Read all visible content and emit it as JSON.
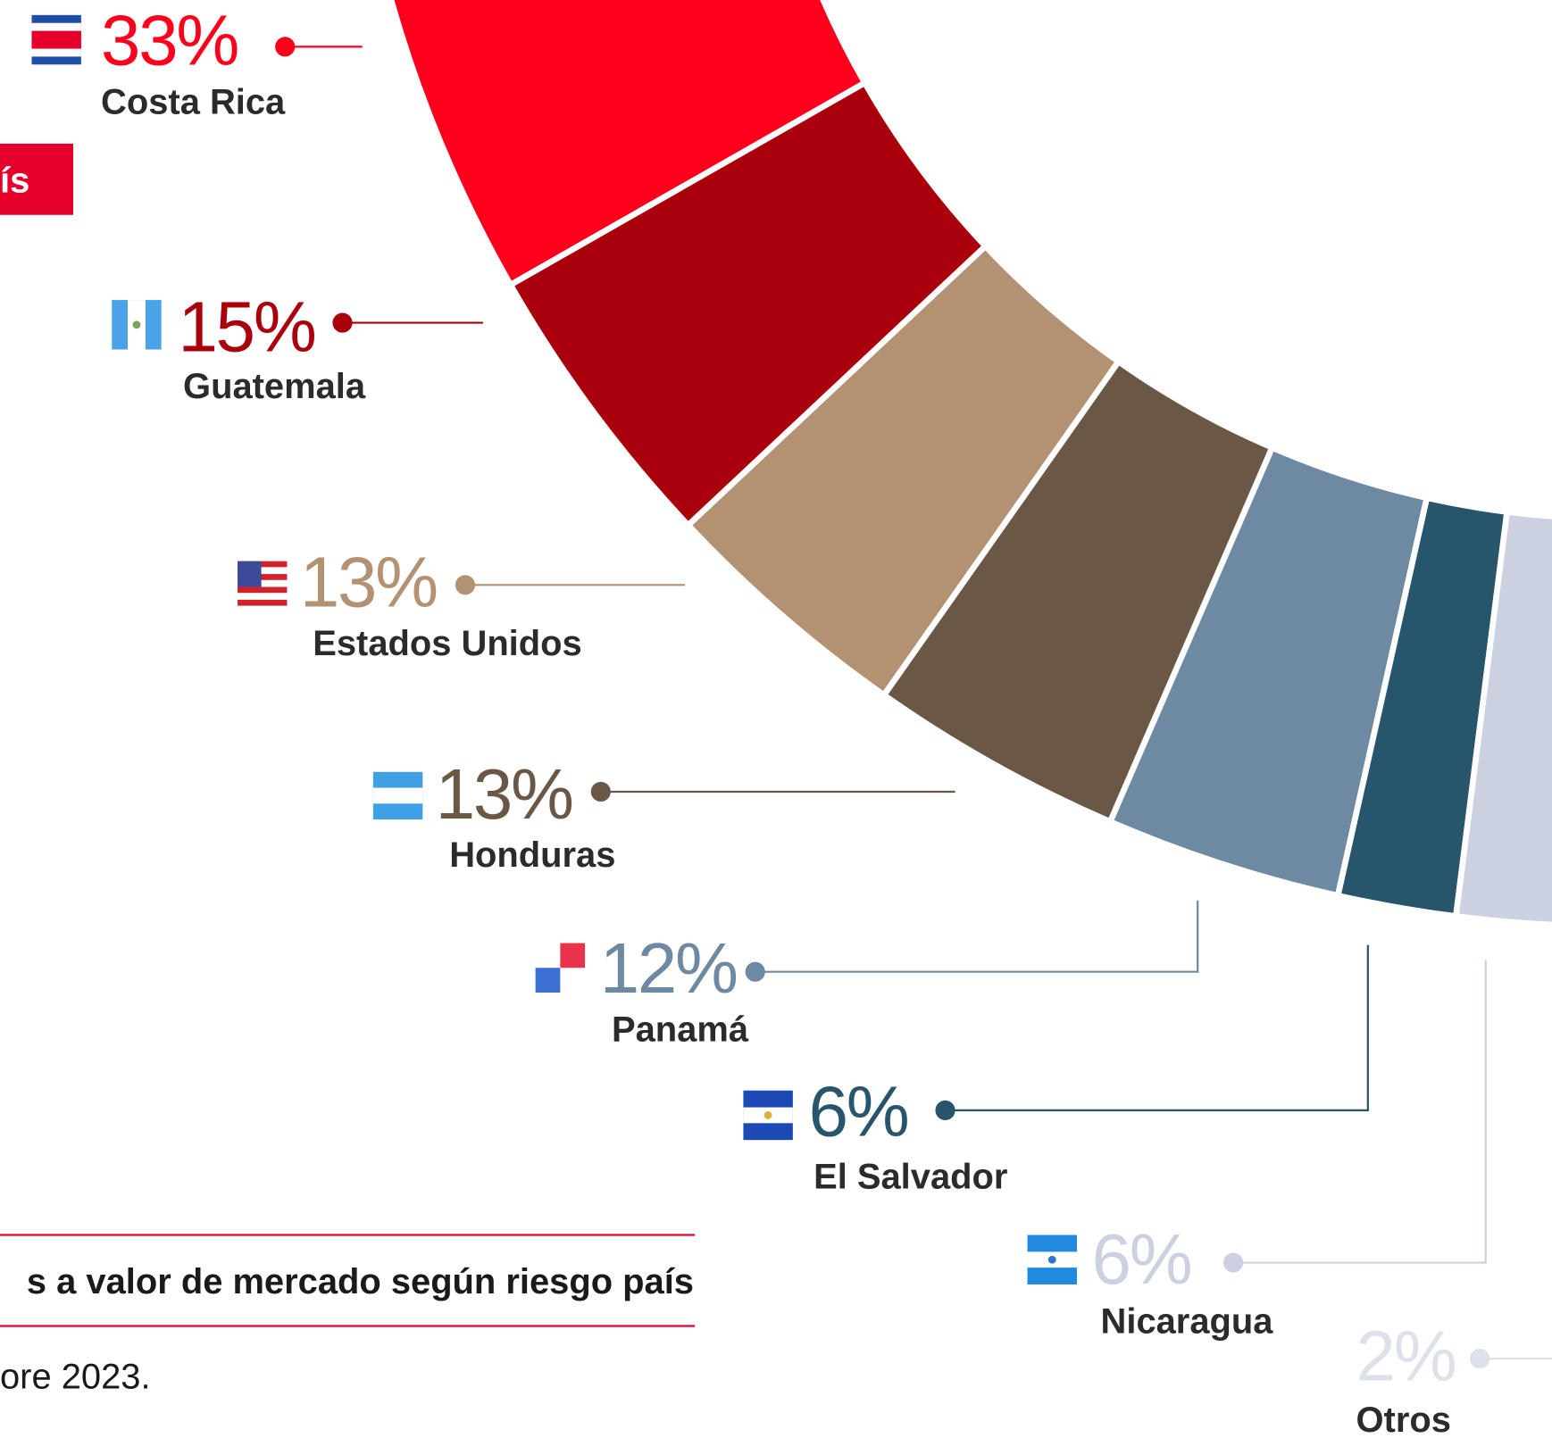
{
  "chart_data": {
    "type": "pie",
    "title": "s a valor de mercado según riesgo país",
    "subtitle": "ore 2023.",
    "annotations": [
      "ís"
    ],
    "categories": [
      "Costa Rica",
      "Guatemala",
      "Estados Unidos",
      "Honduras",
      "Panamá",
      "El Salvador",
      "Nicaragua",
      "Otros"
    ],
    "values": [
      33,
      15,
      13,
      13,
      12,
      6,
      6,
      2
    ],
    "value_labels": [
      "33%",
      "15%",
      "13%",
      "13%",
      "12%",
      "6%",
      "6%",
      "2%"
    ],
    "colors": [
      "#ff001c",
      "#aa000c",
      "#b39274",
      "#6b5746",
      "#6e8aa2",
      "#27556b",
      "#cbd1e0",
      "#dde1ea"
    ]
  }
}
